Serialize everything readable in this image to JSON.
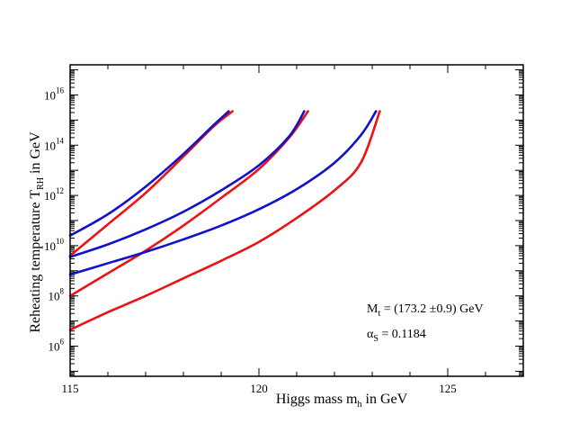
{
  "chart_data": {
    "type": "line",
    "title": "",
    "xlabel": "Higgs mass m_h in GeV",
    "xlabel_main": "Higgs mass m",
    "xlabel_sub": "h",
    "xlabel_tail": " in GeV",
    "ylabel": "Reheating temperature T_RH in GeV",
    "ylabel_main": "Reheating temperature T",
    "ylabel_sub": "RH",
    "ylabel_tail": " in GeV",
    "xlim": [
      115,
      127
    ],
    "ylim_log10": [
      4.8,
      17.2
    ],
    "y_scale": "log",
    "x_ticks": [
      115,
      120,
      125
    ],
    "x_tick_labels": [
      "115",
      "120",
      "125"
    ],
    "y_ticks_log10": [
      6,
      8,
      10,
      12,
      14,
      16
    ],
    "y_tick_base": "10",
    "y_tick_exponents": [
      "6",
      "8",
      "10",
      "12",
      "14",
      "16"
    ],
    "colors": {
      "red": "#ee1111",
      "blue": "#1111cc"
    },
    "series": [
      {
        "name": "red-upper",
        "color": "red",
        "x": [
          115.0,
          116.0,
          117.0,
          118.0,
          118.8,
          119.3
        ],
        "y_log10": [
          9.6,
          10.85,
          12.1,
          13.55,
          14.75,
          15.35
        ]
      },
      {
        "name": "red-middle",
        "color": "red",
        "x": [
          115.0,
          116.0,
          117.0,
          118.0,
          119.0,
          120.0,
          120.8,
          121.3
        ],
        "y_log10": [
          8.0,
          8.9,
          9.8,
          10.8,
          11.9,
          13.05,
          14.3,
          15.35
        ]
      },
      {
        "name": "red-lower",
        "color": "red",
        "x": [
          115.0,
          116.0,
          117.0,
          118.0,
          119.0,
          120.0,
          121.0,
          122.0,
          122.7,
          123.2
        ],
        "y_log10": [
          6.65,
          7.35,
          8.0,
          8.7,
          9.4,
          10.15,
          11.1,
          12.2,
          13.3,
          15.35
        ]
      },
      {
        "name": "blue-upper",
        "color": "blue",
        "x": [
          115.0,
          116.0,
          117.0,
          118.0,
          118.8,
          119.2
        ],
        "y_log10": [
          10.4,
          11.25,
          12.35,
          13.65,
          14.8,
          15.35
        ]
      },
      {
        "name": "blue-middle",
        "color": "blue",
        "x": [
          115.0,
          116.0,
          117.0,
          118.0,
          119.0,
          120.0,
          120.8,
          121.2
        ],
        "y_log10": [
          9.55,
          10.05,
          10.65,
          11.35,
          12.2,
          13.2,
          14.35,
          15.35
        ]
      },
      {
        "name": "blue-lower",
        "color": "blue",
        "x": [
          115.0,
          116.0,
          117.0,
          118.0,
          119.0,
          120.0,
          121.0,
          122.0,
          122.7,
          123.1
        ],
        "y_log10": [
          8.85,
          9.3,
          9.75,
          10.25,
          10.8,
          11.45,
          12.25,
          13.3,
          14.4,
          15.35
        ]
      }
    ],
    "annotations": {
      "mt_main": "M",
      "mt_sub": "t",
      "mt_value": " = (173.2 ±0.9) GeV",
      "alpha_symbol": "α",
      "alpha_sub": "S",
      "alpha_value": " = 0.1184"
    }
  }
}
